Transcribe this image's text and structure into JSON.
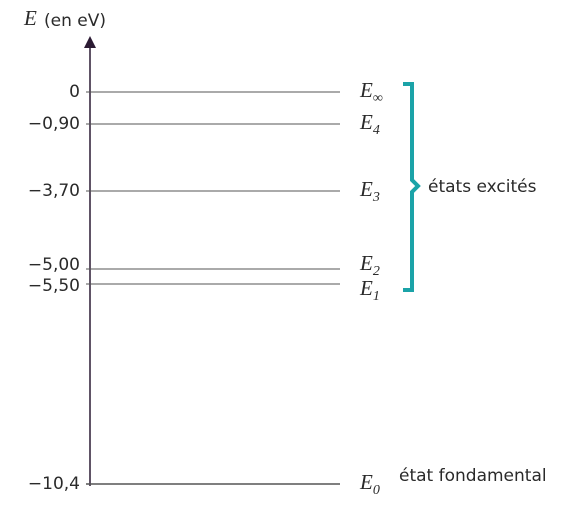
{
  "axis_label": {
    "symbol": "E",
    "unit": "(en eV)"
  },
  "levels": [
    {
      "value_label": "0",
      "name": "E",
      "subscript": "∞"
    },
    {
      "value_label": "−0,90",
      "name": "E",
      "subscript": "4"
    },
    {
      "value_label": "−3,70",
      "name": "E",
      "subscript": "3"
    },
    {
      "value_label": "−5,00",
      "name": "E",
      "subscript": "2"
    },
    {
      "value_label": "−5,50",
      "name": "E",
      "subscript": "1"
    },
    {
      "value_label": "−10,4",
      "name": "E",
      "subscript": "0"
    }
  ],
  "bracket_label": "états excités",
  "ground_label": "état fondamental"
}
